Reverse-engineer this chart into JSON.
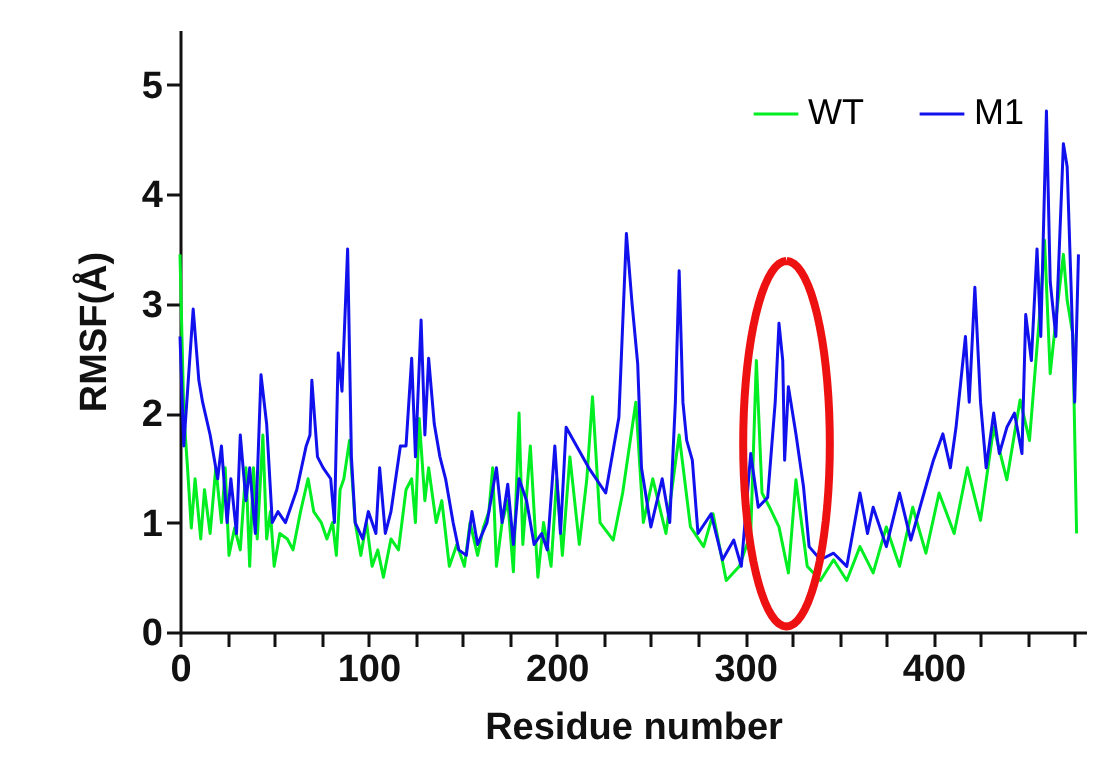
{
  "chart_data": {
    "type": "line",
    "xlabel": "Residue number",
    "ylabel": "RMSF(Å)",
    "xlim": [
      0,
      481
    ],
    "ylim": [
      0,
      5.5
    ],
    "xticks": [
      0,
      {
        "value": 25,
        "label": null
      },
      {
        "value": 50,
        "label": null
      },
      {
        "value": 75,
        "label": null
      },
      100,
      {
        "value": 125,
        "label": null
      },
      {
        "value": 150,
        "label": null
      },
      {
        "value": 175,
        "label": null
      },
      200,
      {
        "value": 225,
        "label": null
      },
      {
        "value": 250,
        "label": null
      },
      {
        "value": 275,
        "label": null
      },
      300,
      {
        "value": 325,
        "label": null
      },
      {
        "value": 350,
        "label": null
      },
      {
        "value": 375,
        "label": null
      },
      400,
      {
        "value": 425,
        "label": null
      },
      {
        "value": 450,
        "label": null
      },
      {
        "value": 475,
        "label": null
      }
    ],
    "yticks": [
      0,
      1,
      2,
      3,
      4,
      5
    ],
    "grid": false,
    "legend": "top right",
    "marker": "none",
    "line_style": "solid",
    "series": [
      {
        "name": "WT",
        "color": "#00ee22",
        "x": [
          0,
          2,
          4,
          6,
          8,
          11,
          13,
          16,
          19,
          22,
          24,
          26,
          29,
          32,
          35,
          37,
          39,
          41,
          44,
          46,
          48,
          50,
          53,
          57,
          60,
          64,
          68,
          71,
          75,
          78,
          81,
          83,
          85,
          87,
          90,
          93,
          96,
          99,
          102,
          105,
          108,
          112,
          116,
          120,
          123,
          125,
          127,
          130,
          132,
          136,
          139,
          143,
          147,
          151,
          154,
          158,
          161,
          164,
          166,
          168,
          171,
          174,
          177,
          180,
          182,
          186,
          190,
          193,
          197,
          200,
          203,
          207,
          212,
          216,
          219,
          223,
          230,
          235,
          242,
          246,
          251,
          258,
          265,
          271,
          278,
          283,
          290,
          297,
          303,
          306,
          309,
          313,
          318,
          323,
          327,
          333,
          340,
          347,
          354,
          361,
          368,
          375,
          382,
          389,
          396,
          403,
          411,
          418,
          425,
          432,
          439,
          446,
          451,
          457,
          459,
          462,
          465,
          469,
          471,
          474,
          476
        ],
        "values": [
          3.45,
          2.0,
          1.5,
          0.95,
          1.4,
          0.85,
          1.3,
          0.9,
          1.5,
          1.0,
          1.5,
          0.7,
          0.95,
          0.75,
          1.5,
          0.6,
          1.5,
          0.85,
          1.8,
          0.85,
          1.1,
          0.6,
          0.9,
          0.85,
          0.75,
          1.1,
          1.4,
          1.1,
          1.0,
          0.85,
          1.0,
          0.7,
          1.3,
          1.4,
          1.75,
          1.0,
          0.7,
          1.0,
          0.6,
          0.75,
          0.5,
          0.85,
          0.75,
          1.3,
          1.4,
          1.0,
          1.95,
          1.2,
          1.5,
          1.0,
          1.2,
          0.6,
          0.8,
          0.6,
          1.0,
          0.7,
          0.95,
          1.1,
          1.5,
          0.6,
          1.0,
          1.2,
          0.55,
          2.0,
          0.8,
          1.7,
          0.5,
          1.0,
          0.6,
          1.4,
          0.7,
          1.6,
          0.8,
          1.4,
          2.15,
          1.0,
          0.84,
          1.27,
          2.1,
          1.0,
          1.4,
          0.9,
          1.8,
          0.96,
          0.78,
          1.08,
          0.47,
          0.6,
          0.9,
          2.48,
          1.27,
          1.14,
          0.96,
          0.54,
          1.39,
          0.6,
          0.47,
          0.66,
          0.47,
          0.78,
          0.54,
          0.96,
          0.6,
          1.14,
          0.72,
          1.27,
          0.9,
          1.5,
          1.02,
          1.87,
          1.39,
          2.12,
          1.75,
          3.03,
          3.58,
          2.36,
          2.85,
          3.45,
          3.03,
          2.72,
          0.9
        ]
      },
      {
        "name": "M1",
        "color": "#1111ee",
        "x": [
          0,
          2,
          7,
          10,
          12,
          16,
          20,
          22,
          25,
          27,
          30,
          32,
          35,
          37,
          40,
          43,
          46,
          49,
          52,
          56,
          62,
          67,
          69,
          70,
          73,
          76,
          80,
          82,
          84,
          86,
          89,
          91,
          93,
          97,
          100,
          104,
          106,
          109,
          112,
          117,
          120,
          123,
          125,
          128,
          130,
          132,
          135,
          138,
          141,
          145,
          148,
          152,
          155,
          158,
          163,
          168,
          171,
          174,
          177,
          180,
          184,
          188,
          192,
          195,
          199,
          202,
          205,
          217,
          226,
          233,
          237,
          240,
          243,
          245,
          250,
          256,
          260,
          263,
          265,
          267,
          269,
          272,
          275,
          282,
          288,
          294,
          298,
          303,
          307,
          312,
          316,
          318,
          320,
          321,
          323,
          327,
          331,
          334,
          340,
          347,
          354,
          361,
          365,
          368,
          375,
          382,
          388,
          395,
          400,
          405,
          409,
          412,
          417,
          419,
          422,
          425,
          428,
          432,
          435,
          439,
          443,
          447,
          449,
          452,
          455,
          457,
          460,
          462,
          465,
          469,
          471,
          473,
          475,
          477
        ],
        "values": [
          2.7,
          1.7,
          2.95,
          2.3,
          2.1,
          1.8,
          1.4,
          1.7,
          1.0,
          1.4,
          0.9,
          1.8,
          1.2,
          1.5,
          0.9,
          2.35,
          1.9,
          1.0,
          1.1,
          1.0,
          1.3,
          1.7,
          1.8,
          2.3,
          1.6,
          1.5,
          1.4,
          1.0,
          2.55,
          2.2,
          3.5,
          1.6,
          1.0,
          0.85,
          1.1,
          0.9,
          1.5,
          0.9,
          1.1,
          1.7,
          1.7,
          2.5,
          1.6,
          2.85,
          1.8,
          2.5,
          1.9,
          1.6,
          1.4,
          1.0,
          0.75,
          0.7,
          1.1,
          0.8,
          1.0,
          1.5,
          1.0,
          1.35,
          0.8,
          1.4,
          1.2,
          0.8,
          0.9,
          0.75,
          1.7,
          0.9,
          1.87,
          1.5,
          1.27,
          1.96,
          3.64,
          3.0,
          2.45,
          1.5,
          0.96,
          1.4,
          1.0,
          2.1,
          3.3,
          2.1,
          1.75,
          1.57,
          0.9,
          1.08,
          0.66,
          0.84,
          0.6,
          1.63,
          1.14,
          1.23,
          2.1,
          2.82,
          2.48,
          1.57,
          2.24,
          1.81,
          1.33,
          0.78,
          0.66,
          0.72,
          0.6,
          1.27,
          0.9,
          1.14,
          0.78,
          1.27,
          0.84,
          1.27,
          1.57,
          1.81,
          1.5,
          1.87,
          2.7,
          2.1,
          3.15,
          2.1,
          1.5,
          2.0,
          1.63,
          1.87,
          2.0,
          1.63,
          2.9,
          2.48,
          3.5,
          2.7,
          4.76,
          3.2,
          2.7,
          4.46,
          4.25,
          3.2,
          2.1,
          3.45
        ]
      }
    ]
  }
}
